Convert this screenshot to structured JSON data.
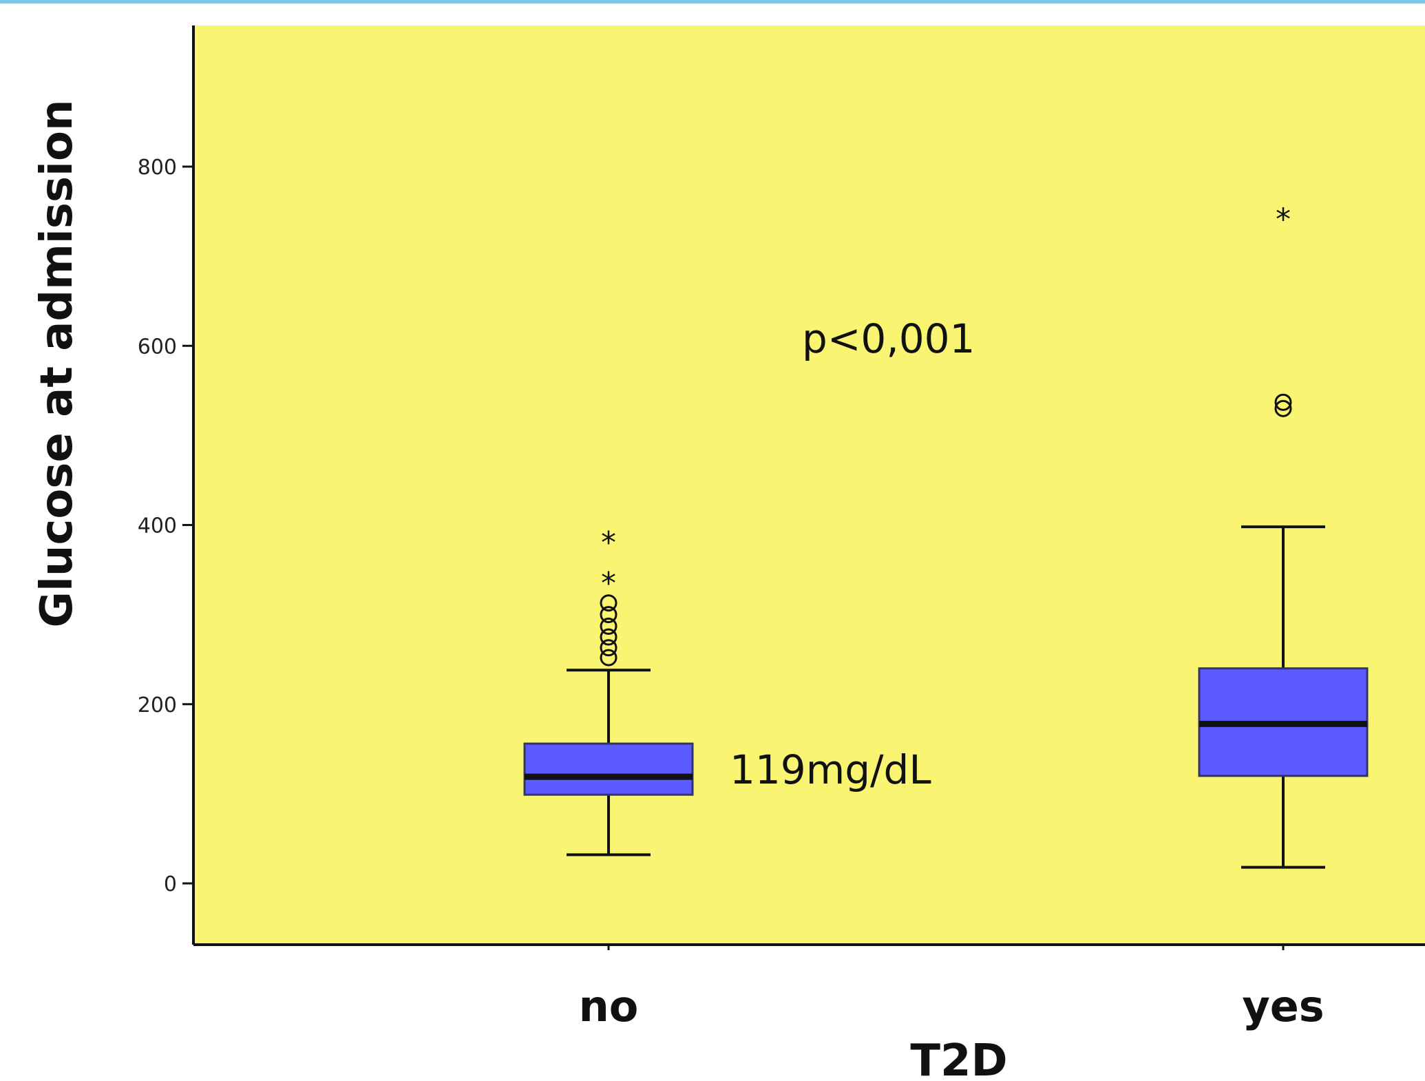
{
  "colors": {
    "plot_background": "#f9f573",
    "box_fill": "#5b5bff",
    "line": "#111111",
    "top_bar": "#7cc6e8"
  },
  "chart_data": {
    "type": "box",
    "title": "",
    "xlabel": "T2D",
    "ylabel": "Glucose at admission",
    "ylim": [
      -68,
      960
    ],
    "yticks": [
      0,
      200,
      400,
      600,
      800
    ],
    "ytick_labels": [
      "0",
      "200",
      "400",
      "600",
      "800"
    ],
    "grid": false,
    "categories": [
      "no",
      "yes"
    ],
    "boxes": [
      {
        "category": "no",
        "whisker_low": 32,
        "q1": 99,
        "median": 119,
        "q3": 156,
        "whisker_high": 238,
        "outliers_circle": [
          252,
          263,
          275,
          287,
          300,
          313
        ],
        "outliers_star": [
          336,
          381
        ]
      },
      {
        "category": "yes",
        "whisker_low": 18,
        "q1": 120,
        "median": 178,
        "q3": 240,
        "whisker_high": 398,
        "outliers_circle": [
          530,
          537
        ],
        "outliers_star": [
          742
        ]
      }
    ],
    "annotations": [
      {
        "text": "p<0,001",
        "x": 1.45,
        "y": 605
      },
      {
        "text": "119mg/dL",
        "x": 1.5,
        "y": 128
      }
    ]
  }
}
